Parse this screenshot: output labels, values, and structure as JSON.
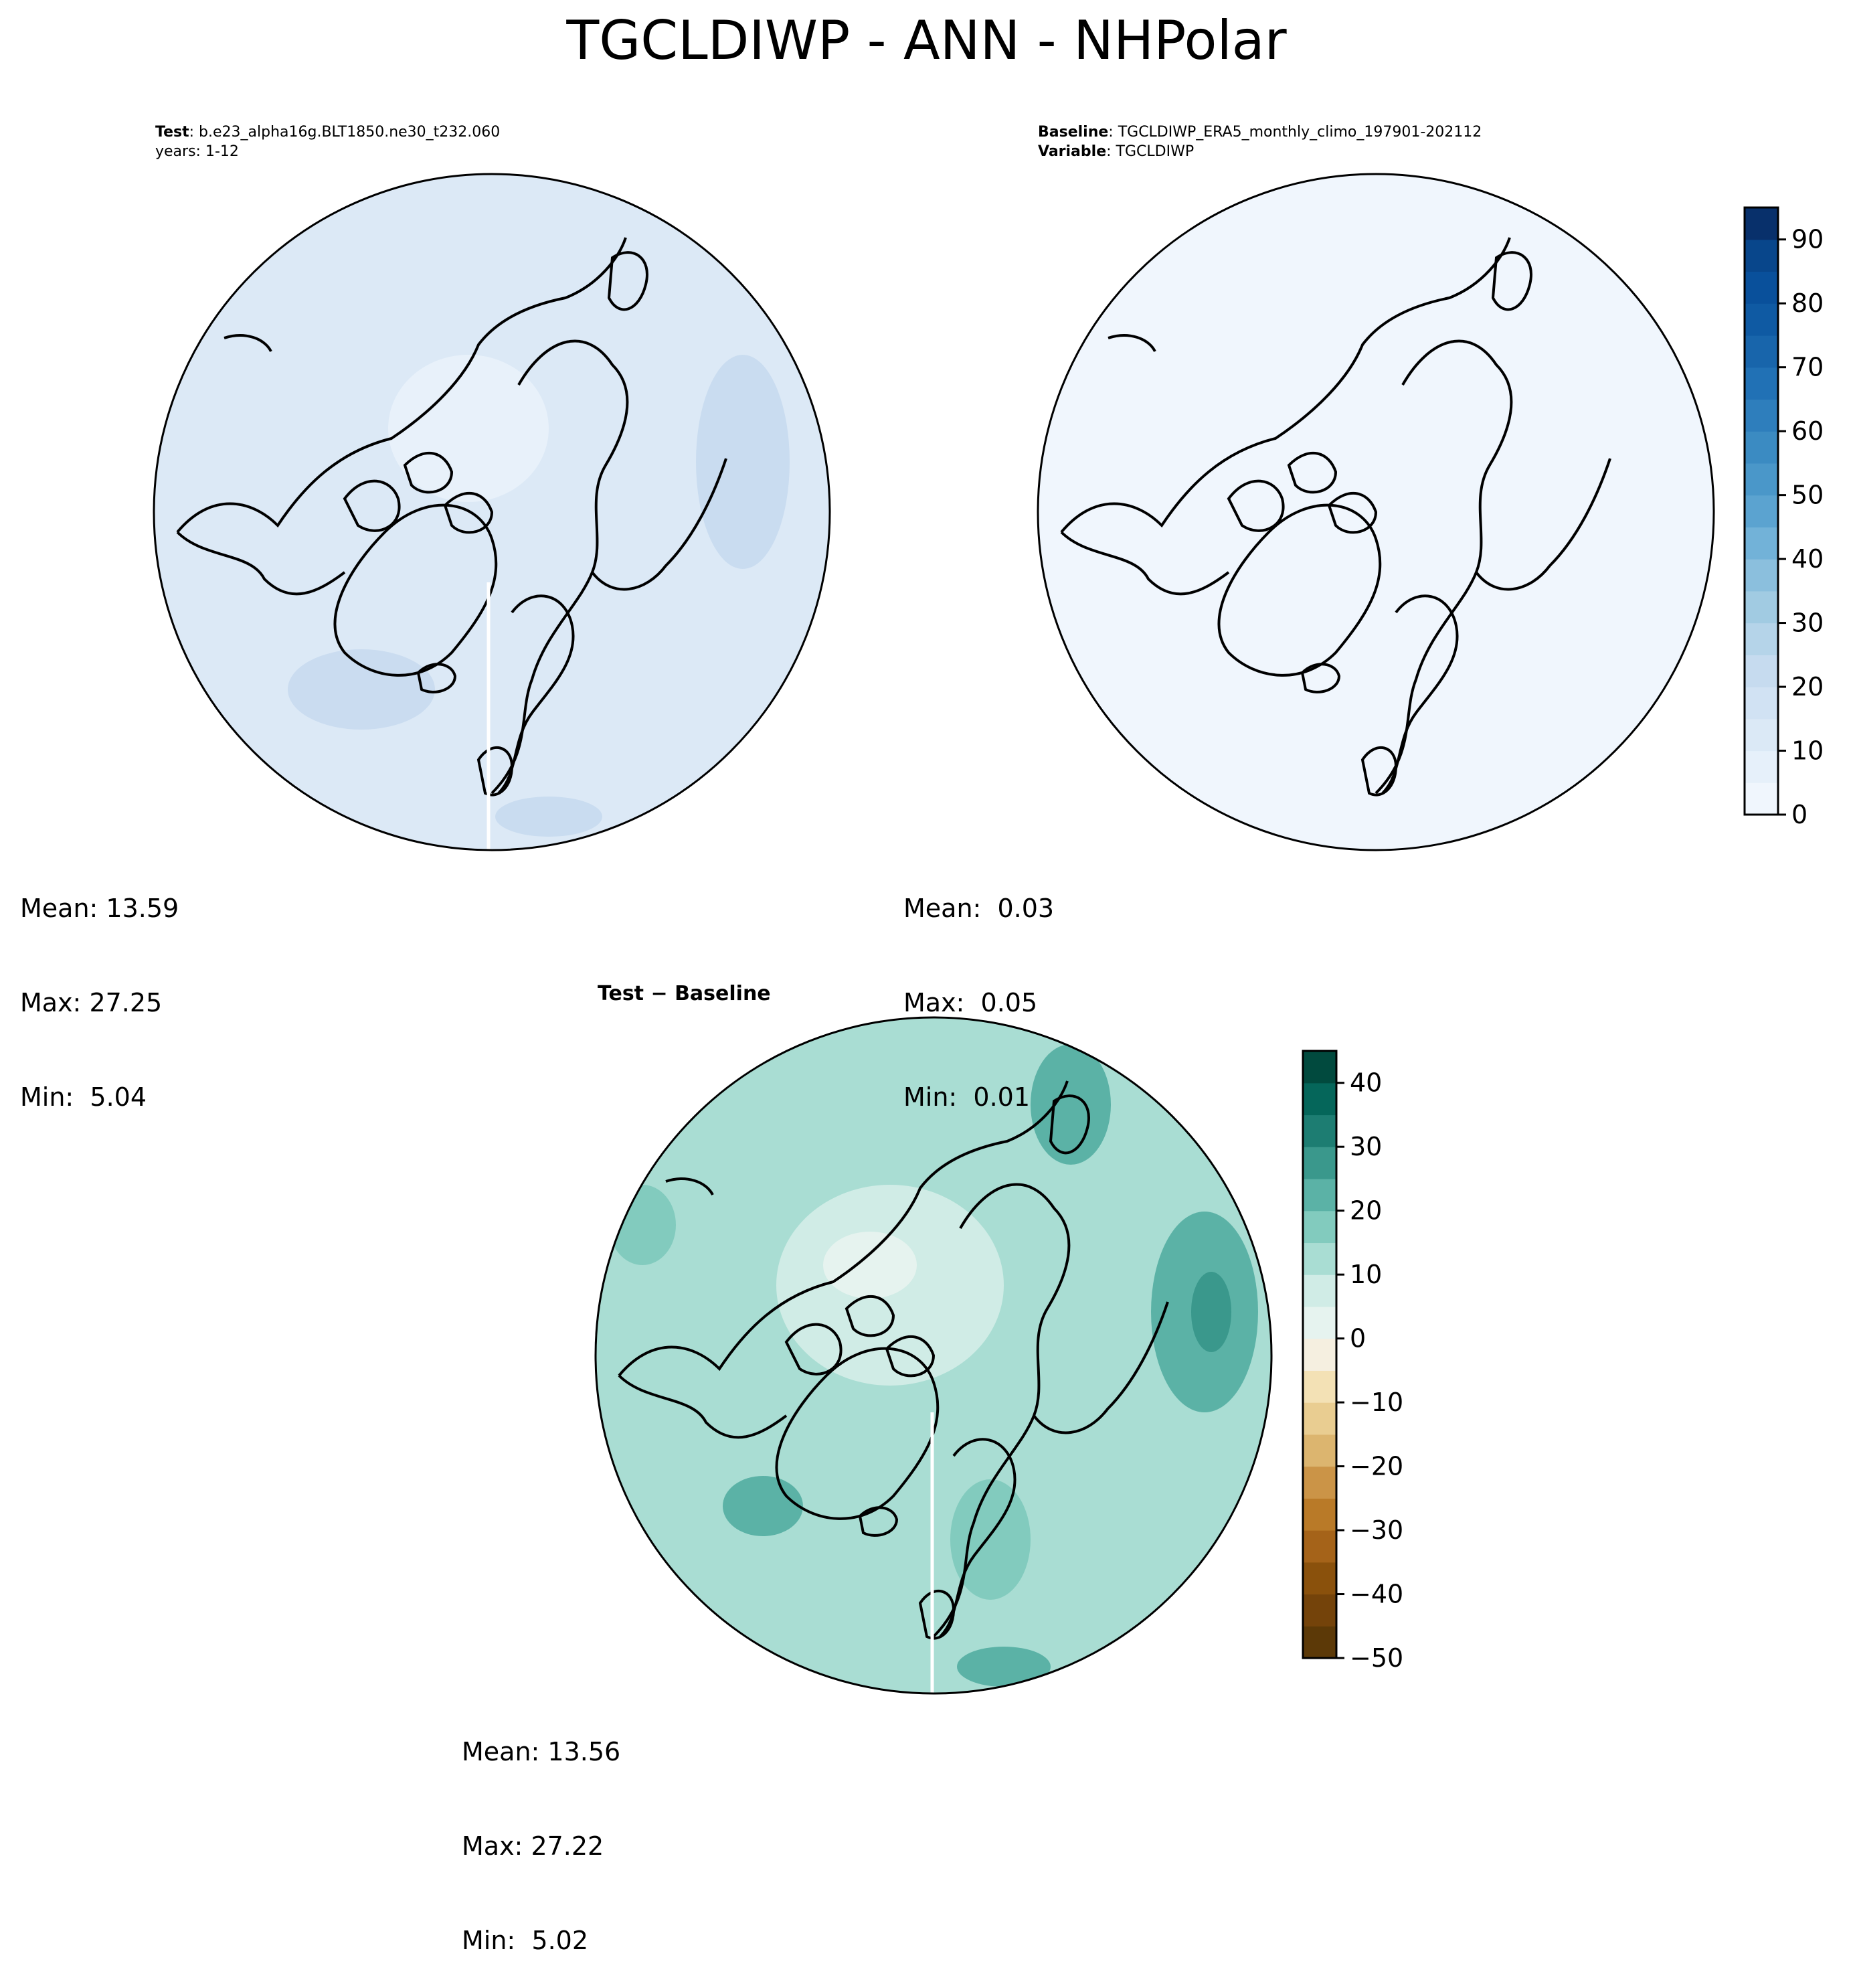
{
  "figure": {
    "title": "TGCLDIWP - ANN - NHPolar"
  },
  "panels": {
    "test": {
      "label_key": "Test",
      "label_value": ": b.e23_alpha16g.BLT1850.ne30_t232.060",
      "line2": "years: 1-12",
      "stats": {
        "mean": "Mean: 13.59",
        "max": "Max: 27.25",
        "min": "Min:  5.04"
      },
      "fill_color": "#dce9f6"
    },
    "baseline": {
      "label_key": "Baseline",
      "label_value": ": TGCLDIWP_ERA5_monthly_climo_197901-202112",
      "label_key2": "Variable",
      "label_value2": ": TGCLDIWP",
      "stats": {
        "mean": "Mean:  0.03",
        "max": "Max:  0.05",
        "min": "Min:  0.01"
      },
      "fill_color": "#f0f6fd"
    },
    "diff": {
      "title_a": "Test",
      "title_sep": " − ",
      "title_b": "Baseline",
      "stats": {
        "mean": "Mean: 13.56",
        "max": "Max: 27.22",
        "min": "Min:  5.02"
      },
      "fill_color": "#a9ddd3"
    }
  },
  "chart_data": [
    {
      "type": "heatmap",
      "name": "test",
      "projection": "north-polar-stereographic",
      "mean": 13.59,
      "max": 27.25,
      "min": 5.04
    },
    {
      "type": "heatmap",
      "name": "baseline",
      "projection": "north-polar-stereographic",
      "mean": 0.03,
      "max": 0.05,
      "min": 0.01,
      "colorbar": {
        "colormap": "Blues",
        "range": [
          0,
          95
        ],
        "levels": 19,
        "ticks": [
          0,
          10,
          20,
          30,
          40,
          50,
          60,
          70,
          80,
          90
        ],
        "tick_labels": [
          "0",
          "10",
          "20",
          "30",
          "40",
          "50",
          "60",
          "70",
          "80",
          "90"
        ],
        "colors": [
          "#f0f6fd",
          "#e6f0fa",
          "#dbe9f6",
          "#d1e2f3",
          "#c6dbef",
          "#b5d4e9",
          "#a1cbe2",
          "#8bbfdd",
          "#72b2d8",
          "#5ba3d0",
          "#4a97c9",
          "#3b8bc2",
          "#2e7ebc",
          "#2171b5",
          "#1865ab",
          "#0f5aa3",
          "#09509b",
          "#08468b",
          "#08306b"
        ]
      }
    },
    {
      "type": "heatmap",
      "name": "diff",
      "projection": "north-polar-stereographic",
      "mean": 13.56,
      "max": 27.22,
      "min": 5.02,
      "colorbar": {
        "colormap": "BrBG",
        "range": [
          -50,
          45
        ],
        "levels": 19,
        "ticks": [
          -50,
          -40,
          -30,
          -20,
          -10,
          0,
          10,
          20,
          30,
          40
        ],
        "tick_labels": [
          "−50",
          "−40",
          "−30",
          "−20",
          "−10",
          "0",
          "10",
          "20",
          "30",
          "40"
        ],
        "colors": [
          "#5c3907",
          "#74430a",
          "#8a510c",
          "#a56319",
          "#b97a28",
          "#cb9447",
          "#dcb56f",
          "#e9cd91",
          "#f3e1b5",
          "#f5efe0",
          "#e6f3ef",
          "#d0ece6",
          "#a9ddd3",
          "#82cbbe",
          "#5bb2a6",
          "#3a988c",
          "#1d7d72",
          "#05665a",
          "#014a3e"
        ]
      }
    }
  ]
}
